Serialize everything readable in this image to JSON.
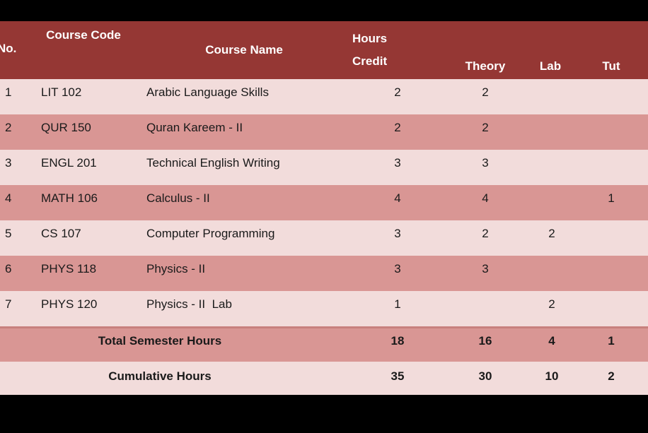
{
  "table": {
    "headers": {
      "no": "No.",
      "course_code": "Course Code",
      "course_name": "Course Name",
      "credit_line1": "Hours",
      "credit_line2": "Credit",
      "theory": "Theory",
      "lab": "Lab",
      "tut": "Tut"
    },
    "rows": [
      {
        "no": "1",
        "code": "LIT 102",
        "name": "Arabic Language Skills",
        "credit": "2",
        "theory": "2",
        "lab": "",
        "tut": ""
      },
      {
        "no": "2",
        "code": "QUR 150",
        "name": "Quran Kareem - II",
        "credit": "2",
        "theory": "2",
        "lab": "",
        "tut": ""
      },
      {
        "no": "3",
        "code": "ENGL 201",
        "name": "Technical English Writing",
        "credit": "3",
        "theory": "3",
        "lab": "",
        "tut": ""
      },
      {
        "no": "4",
        "code": "MATH 106",
        "name": "Calculus - II",
        "credit": "4",
        "theory": "4",
        "lab": "",
        "tut": "1"
      },
      {
        "no": "5",
        "code": "CS 107",
        "name": "Computer Programming",
        "credit": "3",
        "theory": "2",
        "lab": "2",
        "tut": ""
      },
      {
        "no": "6",
        "code": "PHYS 118",
        "name": "Physics - II",
        "credit": "3",
        "theory": "3",
        "lab": "",
        "tut": ""
      },
      {
        "no": "7",
        "code": "PHYS 120",
        "name": "Physics - II  Lab",
        "credit": "1",
        "theory": "",
        "lab": "2",
        "tut": ""
      }
    ],
    "total_row": {
      "label": "Total Semester Hours",
      "credit": "18",
      "theory": "16",
      "lab": "4",
      "tut": "1"
    },
    "cumulative_row": {
      "label": "Cumulative Hours",
      "credit": "35",
      "theory": "30",
      "lab": "10",
      "tut": "2"
    }
  },
  "colors": {
    "header_bg": "#953734",
    "row_light": "#F2DCDB",
    "row_dark": "#D99694",
    "separator": "#C8807D",
    "header_text": "#FFFFFF",
    "body_text": "#1A1A1A"
  }
}
